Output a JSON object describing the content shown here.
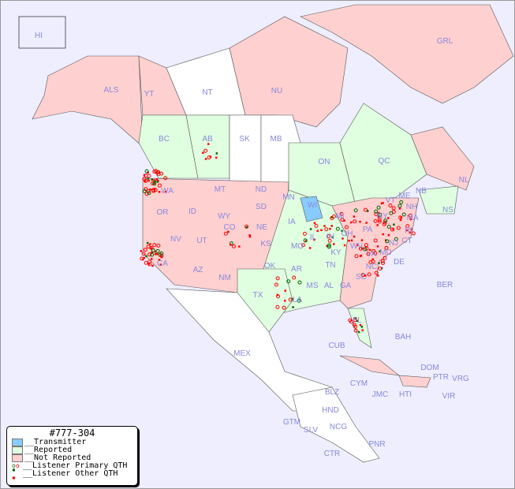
{
  "legend": {
    "title": "#777-304",
    "items": [
      {
        "label": "__Transmitter",
        "color": "#88ccff"
      },
      {
        "label": "__Reported",
        "color": "#e0ffe0"
      },
      {
        "label": "__Not Reported",
        "color": "#ffd0d0"
      },
      {
        "label": "__Listener Primary QTH",
        "colors": [
          "#006600",
          "#ff0000"
        ]
      },
      {
        "label": "__Listener Other QTH",
        "colors": [
          "#006600",
          "#ff0000"
        ]
      }
    ]
  },
  "colors": {
    "ocean": "#eeeeff",
    "land": "#ffffff",
    "transmitter": "#88ccff",
    "reported": "#e0ffe0",
    "not_reported": "#ffd0d0"
  },
  "regions": {
    "HI": "not_reported",
    "ALS": "not_reported",
    "YT": "not_reported",
    "NT": "land",
    "NU": "not_reported",
    "GRL": "not_reported",
    "BC": "reported",
    "AB": "reported",
    "SK": "land",
    "MB": "land",
    "ON": "reported",
    "QC": "reported",
    "NL": "not_reported",
    "NB": "not_reported",
    "NS": "reported",
    "WI": "transmitter"
  },
  "labels": [
    "HI",
    "ALS",
    "YT",
    "NT",
    "NU",
    "GRL",
    "BC",
    "AB",
    "SK",
    "MB",
    "ON",
    "QC",
    "NL",
    "NB",
    "NS",
    "WA",
    "OR",
    "ID",
    "MT",
    "WY",
    "ND",
    "SD",
    "NE",
    "MN",
    "WI",
    "IA",
    "MI",
    "IL",
    "IN",
    "OH",
    "KY",
    "WV",
    "VA",
    "NC",
    "SC",
    "GA",
    "FL",
    "AL",
    "MS",
    "TN",
    "AR",
    "LA",
    "TX",
    "OK",
    "KS",
    "MO",
    "CO",
    "UT",
    "NV",
    "CA",
    "AZ",
    "NM",
    "PA",
    "NY",
    "VT",
    "NH",
    "ME",
    "MA",
    "RI",
    "CT",
    "NJ",
    "DE",
    "MD",
    "MEX",
    "CUB",
    "BAH",
    "BER",
    "CYM",
    "JMC",
    "HTI",
    "DOM",
    "PTR",
    "VRG",
    "VIR",
    "BLZ",
    "GTM",
    "SLV",
    "HND",
    "NCG",
    "CTR",
    "PNR"
  ]
}
